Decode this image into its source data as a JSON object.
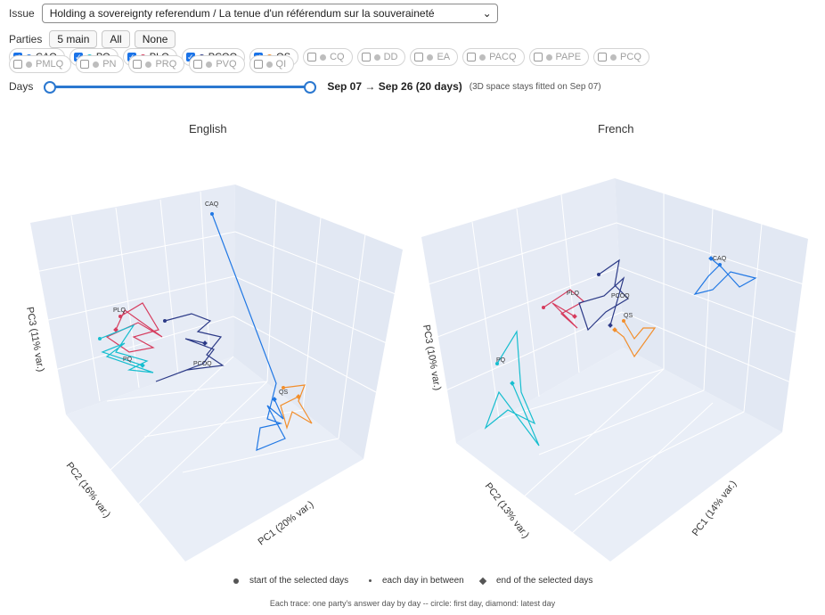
{
  "issue": {
    "label": "Issue",
    "selected": "Holding a sovereignty referendum / La tenue d'un référendum sur la souveraineté"
  },
  "parties": {
    "label": "Parties",
    "buttons": [
      "5 main",
      "All",
      "None"
    ],
    "items": [
      {
        "name": "CAQ",
        "checked": true,
        "color": "#1f77e4"
      },
      {
        "name": "PQ",
        "checked": true,
        "color": "#17becf"
      },
      {
        "name": "PLQ",
        "checked": true,
        "color": "#d63c5e"
      },
      {
        "name": "PCOQ",
        "checked": true,
        "color": "#2c3a87"
      },
      {
        "name": "QS",
        "checked": true,
        "color": "#f28e2b"
      },
      {
        "name": "CQ",
        "checked": false,
        "color": "#bdbdbd"
      },
      {
        "name": "DD",
        "checked": false,
        "color": "#bdbdbd"
      },
      {
        "name": "EA",
        "checked": false,
        "color": "#bdbdbd"
      },
      {
        "name": "PACQ",
        "checked": false,
        "color": "#bdbdbd"
      },
      {
        "name": "PAPE",
        "checked": false,
        "color": "#bdbdbd"
      },
      {
        "name": "PCQ",
        "checked": false,
        "color": "#bdbdbd"
      },
      {
        "name": "PMLQ",
        "checked": false,
        "color": "#bdbdbd"
      },
      {
        "name": "PN",
        "checked": false,
        "color": "#bdbdbd"
      },
      {
        "name": "PRQ",
        "checked": false,
        "color": "#bdbdbd"
      },
      {
        "name": "PVQ",
        "checked": false,
        "color": "#bdbdbd"
      },
      {
        "name": "QI",
        "checked": false,
        "color": "#bdbdbd"
      }
    ]
  },
  "days": {
    "label": "Days",
    "range": "Sep 07 → Sep 26 (20 days)",
    "note": "(3D space stays fitted on Sep 07)",
    "start": 0,
    "end": 1
  },
  "plots": [
    {
      "title": "English",
      "axes": {
        "x": "PC1 (20% var.)",
        "y": "PC2 (16% var.)",
        "z": "PC3 (11% var.)"
      },
      "labels": [
        {
          "text": "CAQ"
        },
        {
          "text": "PLQ"
        },
        {
          "text": "PQ"
        },
        {
          "text": "PCOQ"
        },
        {
          "text": "QS"
        }
      ]
    },
    {
      "title": "French",
      "axes": {
        "x": "PC1 (14% var.)",
        "y": "PC2 (13% var.)",
        "z": "PC3 (10% var.)"
      },
      "labels": [
        {
          "text": "CAQ"
        },
        {
          "text": "PLQ"
        },
        {
          "text": "PCOQ"
        },
        {
          "text": "QS"
        },
        {
          "text": "PQ"
        }
      ]
    }
  ],
  "legend": [
    "start of the selected days",
    "each day in between",
    "end of the selected days"
  ],
  "footnote": "Each trace: one party's answer day by day -- circle: first day, diamond: latest day"
}
